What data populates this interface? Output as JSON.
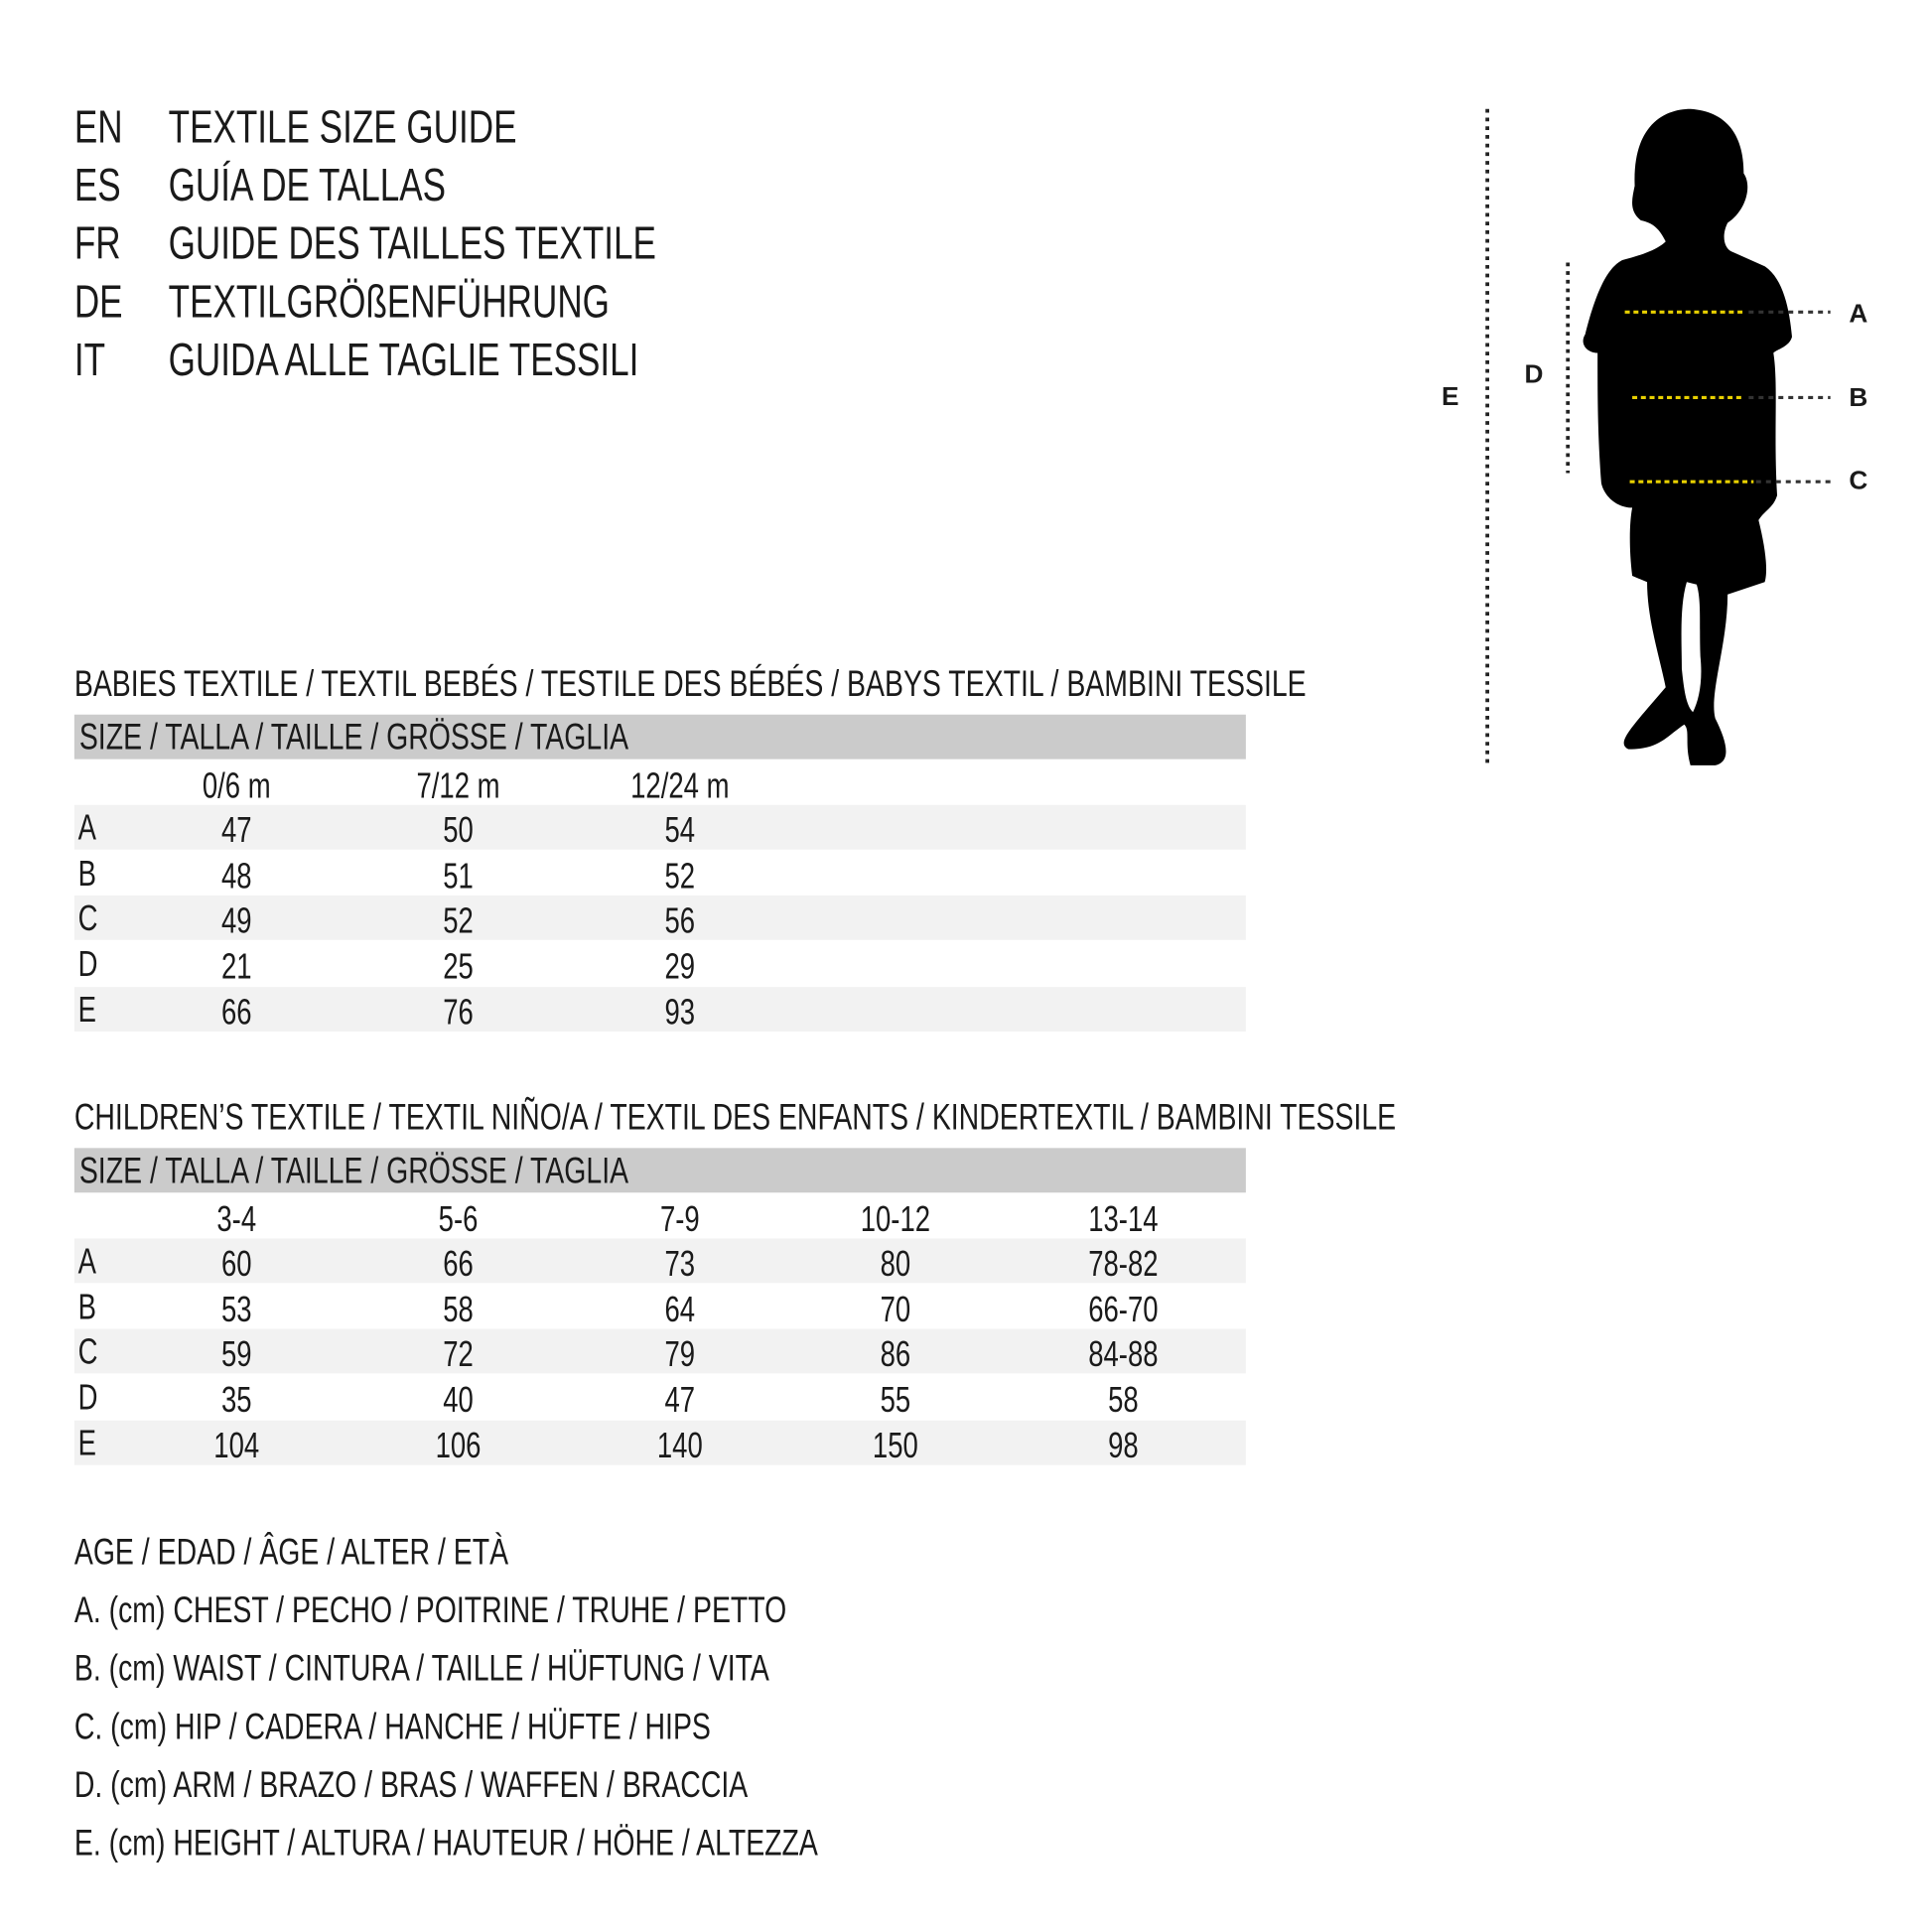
{
  "titles": [
    {
      "code": "EN",
      "text": "TEXTILE SIZE GUIDE"
    },
    {
      "code": "ES",
      "text": "GUÍA DE TALLAS"
    },
    {
      "code": "FR",
      "text": "GUIDE DES TAILLES TEXTILE"
    },
    {
      "code": "DE",
      "text": "TEXTILGRÖßENFÜHRUNG"
    },
    {
      "code": "IT",
      "text": "GUIDA ALLE TAGLIE TESSILI"
    }
  ],
  "babies": {
    "heading": "BABIES TEXTILE / TEXTIL BEBÉS / TESTILE DES BÉBÉS / BABYS TEXTIL / BAMBINI TESSILE",
    "size_header": "SIZE / TALLA / TAILLE / GRÖSSE / TAGLIA",
    "columns": [
      "0/6 m",
      "7/12 m",
      "12/24 m"
    ],
    "rows": [
      {
        "label": "A",
        "values": [
          "47",
          "50",
          "54"
        ]
      },
      {
        "label": "B",
        "values": [
          "48",
          "51",
          "52"
        ]
      },
      {
        "label": "C",
        "values": [
          "49",
          "52",
          "56"
        ]
      },
      {
        "label": "D",
        "values": [
          "21",
          "25",
          "29"
        ]
      },
      {
        "label": "E",
        "values": [
          "66",
          "76",
          "93"
        ]
      }
    ]
  },
  "children": {
    "heading": "CHILDREN’S TEXTILE / TEXTIL NIÑO/A / TEXTIL DES ENFANTS / KINDERTEXTIL / BAMBINI TESSILE",
    "size_header": "SIZE / TALLA / TAILLE / GRÖSSE / TAGLIA",
    "columns": [
      "3-4",
      "5-6",
      "7-9",
      "10-12",
      "13-14"
    ],
    "rows": [
      {
        "label": "A",
        "values": [
          "60",
          "66",
          "73",
          "80",
          "78-82"
        ]
      },
      {
        "label": "B",
        "values": [
          "53",
          "58",
          "64",
          "70",
          "66-70"
        ]
      },
      {
        "label": "C",
        "values": [
          "59",
          "72",
          "79",
          "86",
          "84-88"
        ]
      },
      {
        "label": "D",
        "values": [
          "35",
          "40",
          "47",
          "55",
          "58"
        ]
      },
      {
        "label": "E",
        "values": [
          "104",
          "106",
          "140",
          "150",
          "98"
        ]
      }
    ]
  },
  "legend": [
    "AGE / EDAD / ÂGE / ALTER / ETÀ",
    "A. (cm) CHEST / PECHO / POITRINE / TRUHE / PETTO",
    "B. (cm) WAIST / CINTURA / TAILLE / HÜFTUNG / VITA",
    "C. (cm) HIP / CADERA / HANCHE / HÜFTE / HIPS",
    "D. (cm) ARM / BRAZO / BRAS / WAFFEN / BRACCIA",
    "E. (cm) HEIGHT / ALTURA / HAUTEUR / HÖHE / ALTEZZA"
  ],
  "figure": {
    "labels": {
      "a": "A",
      "b": "B",
      "c": "C",
      "d": "D",
      "e": "E"
    },
    "colors": {
      "silhouette": "#000000",
      "measure_line": "#e8d000",
      "header_band": "#cbcbcb",
      "row_band": "#f2f2f2"
    }
  }
}
